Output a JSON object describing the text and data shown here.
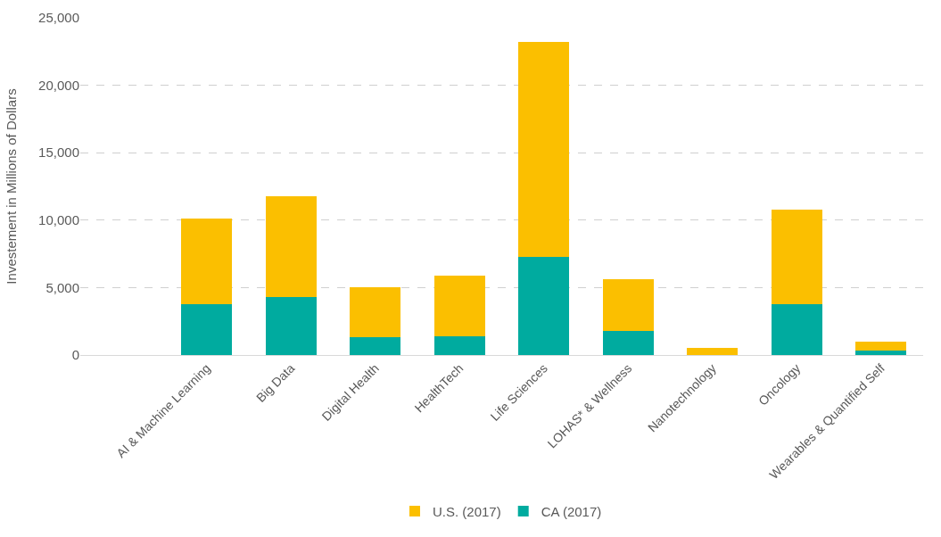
{
  "chart_data": {
    "type": "bar",
    "stacked": true,
    "ylabel": "Investement in Millions of Dollars",
    "categories": [
      null,
      "AI & Machine Learning",
      "Big Data",
      "Digital Health",
      "HealthTech",
      "Life Sciences",
      "LOHAS* & Wellness",
      "Nanotechnology",
      "Oncology",
      "Wearables & Quantified Self"
    ],
    "series": [
      {
        "name": "CA (2017)",
        "color": "#00ab9f",
        "values": [
          null,
          3800,
          4300,
          1300,
          1400,
          7300,
          1800,
          0,
          3800,
          300
        ]
      },
      {
        "name": "U.S. (2017)",
        "color": "#fbbf00",
        "values": [
          null,
          6300,
          7500,
          3700,
          4500,
          15900,
          3800,
          500,
          7000,
          700
        ]
      }
    ],
    "ylim": [
      0,
      25000
    ],
    "yticks": [
      {
        "value": 0,
        "label": "0"
      },
      {
        "value": 5000,
        "label": "5,000"
      },
      {
        "value": 10000,
        "label": "10,000"
      },
      {
        "value": 15000,
        "label": "15,000"
      },
      {
        "value": 20000,
        "label": "20,000"
      },
      {
        "value": 25000,
        "label": "25,000"
      }
    ],
    "grid": "y",
    "legend": "bottom"
  }
}
